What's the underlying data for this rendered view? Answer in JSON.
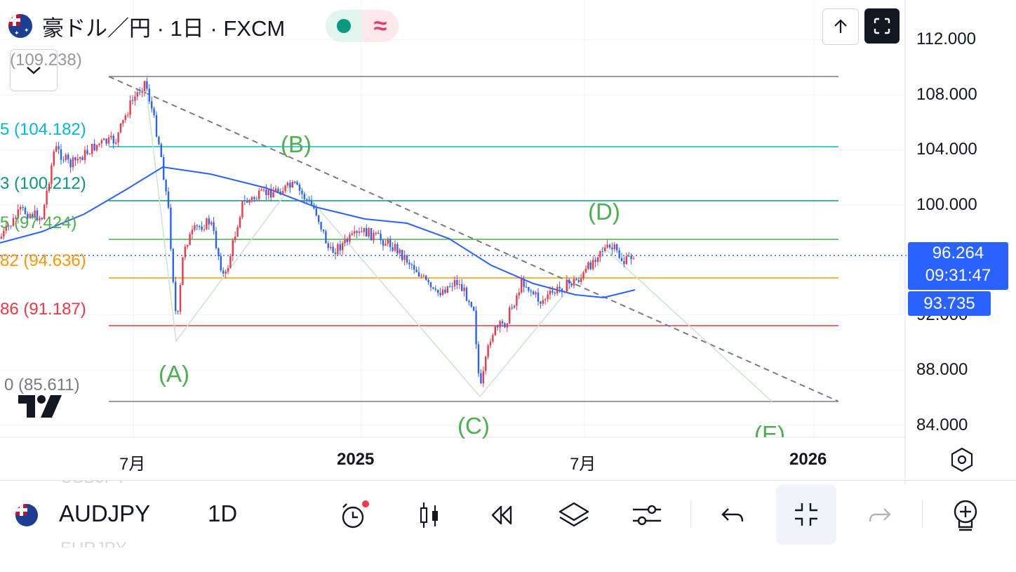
{
  "header": {
    "title": "豪ドル／円 · 1日 · FXCM",
    "market_status_icon": "green-dot-icon",
    "data_delay_icon": "wave-approx-icon",
    "buttons": {
      "publish_icon": "arrow-up-icon",
      "fullscreen_icon": "fullscreen-icon"
    },
    "collapse_icon": "chevron-down-icon"
  },
  "price_axis": {
    "ticks": [
      "112.000",
      "108.000",
      "104.000",
      "100.000",
      "92.000",
      "88.000",
      "84.000"
    ],
    "last_price": "96.264",
    "countdown": "09:31:47",
    "ma_value": "93.735"
  },
  "time_axis": {
    "ticks": [
      {
        "label": "7月",
        "bold": false
      },
      {
        "label": "2025",
        "bold": true
      },
      {
        "label": "7月",
        "bold": false
      },
      {
        "label": "2026",
        "bold": true
      }
    ]
  },
  "fib_levels": [
    {
      "label": "(109.238)",
      "color": "#9598a1",
      "line": "#787b86"
    },
    {
      "label": "5 (104.182)",
      "color": "#00bcd4",
      "line": "#00bcd4"
    },
    {
      "label": "3 (100.212)",
      "color": "#089981",
      "line": "#089981"
    },
    {
      "label": "5 (97.424)",
      "color": "#4caf50",
      "line": "#4caf50"
    },
    {
      "label": "82 (94.636)",
      "color": "#ff9800",
      "line": "#ff9800"
    },
    {
      "label": "86 (91.187)",
      "color": "#f23645",
      "line": "#f23645"
    },
    {
      "label": "0 (85.611)",
      "color": "#787b86",
      "line": "#787b86"
    }
  ],
  "waves": [
    "(A)",
    "(B)",
    "(C)",
    "(D)",
    "(E)"
  ],
  "colors": {
    "up": "#f23645",
    "down": "#2962ff",
    "ma": "#2962ff",
    "wave": "#4caf50",
    "accent": "#2962ff"
  },
  "bottom_bar": {
    "ghost_above": "USDJPY",
    "symbol": "AUDJPY",
    "timeframe": "1D",
    "ghost_below": "EURJPY",
    "icons": [
      "alarm-clock-icon",
      "candles-icon",
      "replay-icon",
      "layers-icon",
      "settings-sliders-icon",
      "undo-icon",
      "collapse-icon",
      "redo-icon",
      "add-indicator-icon"
    ]
  }
}
